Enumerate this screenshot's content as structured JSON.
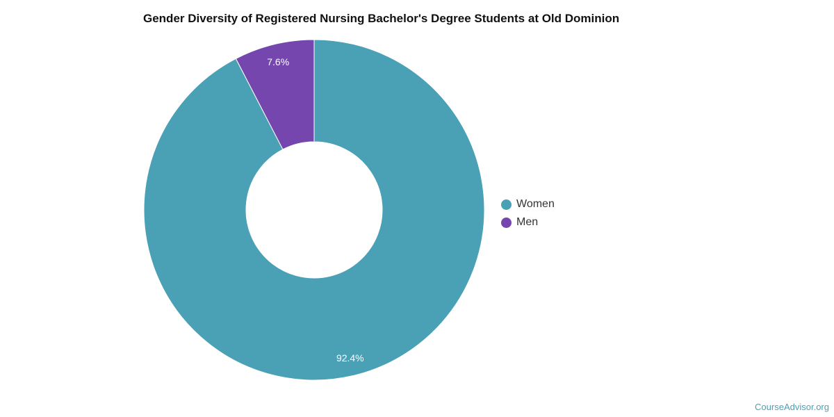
{
  "chart_data": {
    "type": "pie",
    "variant": "donut",
    "title": "Gender Diversity of Registered Nursing Bachelor's Degree Students at Old Dominion",
    "slices": [
      {
        "label": "Women",
        "value": 92.4,
        "display": "92.4%",
        "color": "#4aa0b5"
      },
      {
        "label": "Men",
        "value": 7.6,
        "display": "7.6%",
        "color": "#7446ae"
      }
    ],
    "legend_position": "right"
  },
  "credit": "CourseAdvisor.org"
}
